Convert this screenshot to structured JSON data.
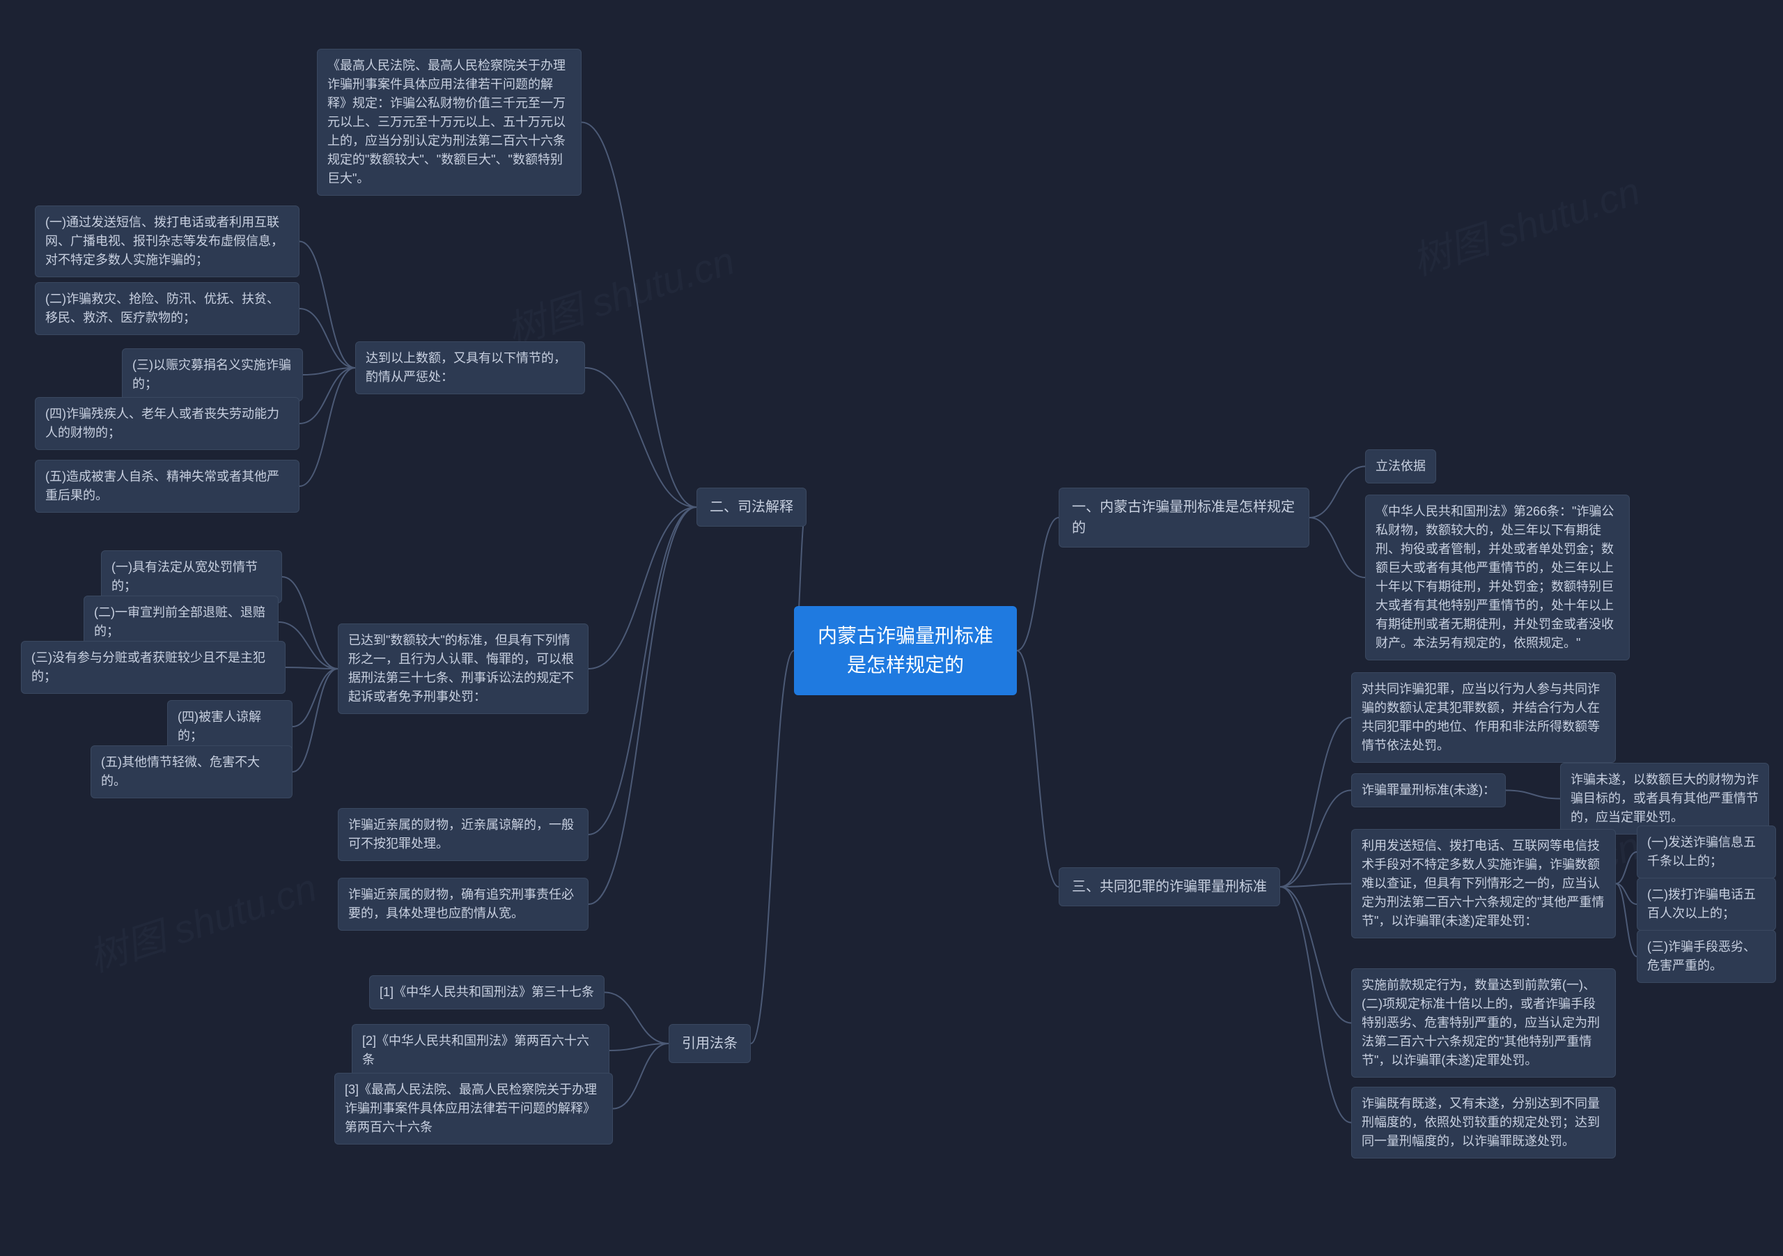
{
  "colors": {
    "background": "#1c2233",
    "node_bg": "#2d3a52",
    "node_border": "#3a4860",
    "node_text": "#c8d0e0",
    "root_bg": "#1f7ae0",
    "root_text": "#ffffff",
    "connector": "#4c5a76"
  },
  "typography": {
    "root_fontsize": 28,
    "branch_fontsize": 20,
    "leaf_fontsize": 18,
    "font_family": "Microsoft YaHei"
  },
  "watermark": "树图 shutu.cn",
  "root": {
    "text": "内蒙古诈骗量刑标准是怎样规定的"
  },
  "right": [
    {
      "label": "一、内蒙古诈骗量刑标准是怎样规定的",
      "children": [
        {
          "text": "立法依据"
        },
        {
          "text": "《中华人民共和国刑法》第266条：\"诈骗公私财物，数额较大的，处三年以下有期徒刑、拘役或者管制，并处或者单处罚金；数额巨大或者有其他严重情节的，处三年以上十年以下有期徒刑，并处罚金；数额特别巨大或者有其他特别严重情节的，处十年以上有期徒刑或者无期徒刑，并处罚金或者没收财产。本法另有规定的，依照规定。\""
        }
      ]
    },
    {
      "label": "三、共同犯罪的诈骗罪量刑标准",
      "children": [
        {
          "text": "对共同诈骗犯罪，应当以行为人参与共同诈骗的数额认定其犯罪数额，并结合行为人在共同犯罪中的地位、作用和非法所得数额等情节依法处罚。"
        },
        {
          "text": "诈骗罪量刑标准(未遂)：",
          "children": [
            {
              "text": "诈骗未遂，以数额巨大的财物为诈骗目标的，或者具有其他严重情节的，应当定罪处罚。"
            }
          ]
        },
        {
          "text": "利用发送短信、拨打电话、互联网等电信技术手段对不特定多数人实施诈骗，诈骗数额难以查证，但具有下列情形之一的，应当认定为刑法第二百六十六条规定的\"其他严重情节\"，以诈骗罪(未遂)定罪处罚：",
          "children": [
            {
              "text": "(一)发送诈骗信息五千条以上的；"
            },
            {
              "text": "(二)拨打诈骗电话五百人次以上的；"
            },
            {
              "text": "(三)诈骗手段恶劣、危害严重的。"
            }
          ]
        },
        {
          "text": "实施前款规定行为，数量达到前款第(一)、(二)项规定标准十倍以上的，或者诈骗手段特别恶劣、危害特别严重的，应当认定为刑法第二百六十六条规定的\"其他特别严重情节\"，以诈骗罪(未遂)定罪处罚。"
        },
        {
          "text": "诈骗既有既遂，又有未遂，分别达到不同量刑幅度的，依照处罚较重的规定处罚；达到同一量刑幅度的，以诈骗罪既遂处罚。"
        }
      ]
    }
  ],
  "left": [
    {
      "label": "二、司法解释",
      "children": [
        {
          "text": "《最高人民法院、最高人民检察院关于办理诈骗刑事案件具体应用法律若干问题的解释》规定：诈骗公私财物价值三千元至一万元以上、三万元至十万元以上、五十万元以上的，应当分别认定为刑法第二百六十六条规定的\"数额较大\"、\"数额巨大\"、\"数额特别巨大\"。"
        },
        {
          "text": "达到以上数额，又具有以下情节的，酌情从严惩处：",
          "children": [
            {
              "text": "(一)通过发送短信、拨打电话或者利用互联网、广播电视、报刊杂志等发布虚假信息，对不特定多数人实施诈骗的；"
            },
            {
              "text": "(二)诈骗救灾、抢险、防汛、优抚、扶贫、移民、救济、医疗款物的；"
            },
            {
              "text": "(三)以赈灾募捐名义实施诈骗的；"
            },
            {
              "text": "(四)诈骗残疾人、老年人或者丧失劳动能力人的财物的；"
            },
            {
              "text": "(五)造成被害人自杀、精神失常或者其他严重后果的。"
            }
          ]
        },
        {
          "text": "已达到\"数额较大\"的标准，但具有下列情形之一，且行为人认罪、悔罪的，可以根据刑法第三十七条、刑事诉讼法的规定不起诉或者免予刑事处罚：",
          "children": [
            {
              "text": "(一)具有法定从宽处罚情节的；"
            },
            {
              "text": "(二)一审宣判前全部退赃、退赔的；"
            },
            {
              "text": "(三)没有参与分赃或者获赃较少且不是主犯的；"
            },
            {
              "text": "(四)被害人谅解的；"
            },
            {
              "text": "(五)其他情节轻微、危害不大的。"
            }
          ]
        },
        {
          "text": "诈骗近亲属的财物，近亲属谅解的，一般可不按犯罪处理。"
        },
        {
          "text": "诈骗近亲属的财物，确有追究刑事责任必要的，具体处理也应酌情从宽。"
        }
      ]
    },
    {
      "label": "引用法条",
      "children": [
        {
          "text": "[1]《中华人民共和国刑法》第三十七条"
        },
        {
          "text": "[2]《中华人民共和国刑法》第两百六十六条"
        },
        {
          "text": "[3]《最高人民法院、最高人民检察院关于办理诈骗刑事案件具体应用法律若干问题的解释》第两百六十六条"
        }
      ]
    }
  ]
}
